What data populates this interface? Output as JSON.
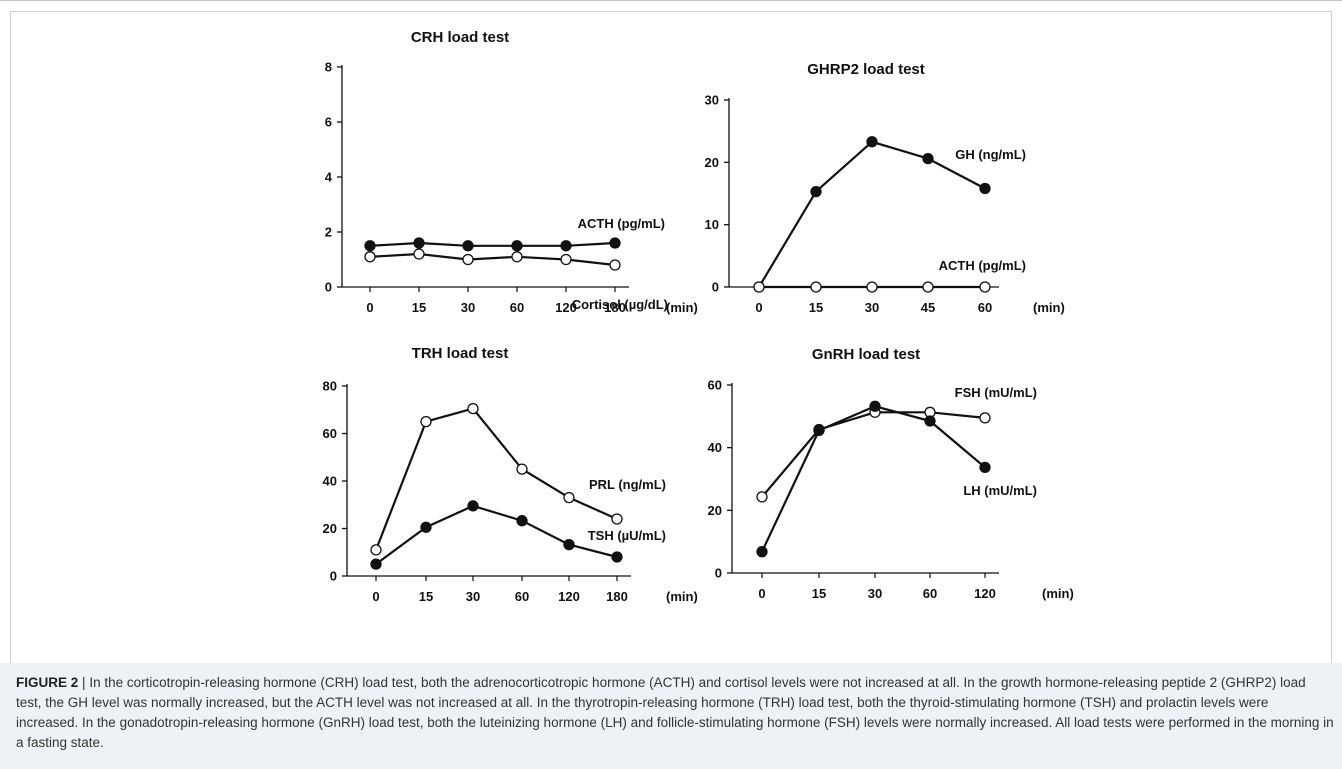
{
  "chart_data": [
    {
      "type": "line",
      "title": "CRH load test",
      "categories": [
        "0",
        "15",
        "30",
        "60",
        "120",
        "180"
      ],
      "x_unit": "(min)",
      "ylim": [
        0,
        8
      ],
      "yticks": [
        "0",
        "2",
        "4",
        "6",
        "8"
      ],
      "grid": false,
      "series": [
        {
          "name": "ACTH (pg/mL)",
          "marker": "filled",
          "values": [
            1.5,
            1.6,
            1.5,
            1.5,
            1.5,
            1.6
          ]
        },
        {
          "name": "Cortisol (µg/dL)",
          "marker": "open",
          "values": [
            1.1,
            1.2,
            1.0,
            1.1,
            1.0,
            0.8
          ]
        }
      ]
    },
    {
      "type": "line",
      "title": "GHRP2 load test",
      "categories": [
        "0",
        "15",
        "30",
        "45",
        "60"
      ],
      "x_unit": "(min)",
      "ylim": [
        0,
        30
      ],
      "yticks": [
        "0",
        "10",
        "20",
        "30"
      ],
      "grid": false,
      "series": [
        {
          "name": "GH (ng/mL)",
          "marker": "filled",
          "values": [
            0,
            15.3,
            23.3,
            20.6,
            15.8
          ]
        },
        {
          "name": "ACTH (pg/mL)",
          "marker": "open",
          "values": [
            0,
            0,
            0,
            0,
            0
          ]
        }
      ]
    },
    {
      "type": "line",
      "title": "TRH load test",
      "categories": [
        "0",
        "15",
        "30",
        "60",
        "120",
        "180"
      ],
      "x_unit": "(min)",
      "ylim": [
        0,
        80
      ],
      "yticks": [
        "0",
        "20",
        "40",
        "60",
        "80"
      ],
      "grid": false,
      "series": [
        {
          "name": "PRL (ng/mL)",
          "marker": "open",
          "values": [
            11,
            65,
            70.5,
            45,
            33,
            24
          ]
        },
        {
          "name": "TSH (µU/mL)",
          "marker": "filled",
          "values": [
            5,
            20.5,
            29.5,
            23.3,
            13.2,
            8
          ]
        }
      ]
    },
    {
      "type": "line",
      "title": "GnRH load test",
      "categories": [
        "0",
        "15",
        "30",
        "60",
        "120"
      ],
      "x_unit": "(min)",
      "ylim": [
        0,
        60
      ],
      "yticks": [
        "0",
        "20",
        "40",
        "60"
      ],
      "grid": false,
      "series": [
        {
          "name": "FSH (mU/mL)",
          "marker": "open",
          "values": [
            24.3,
            45.8,
            51.3,
            51.3,
            49.5
          ]
        },
        {
          "name": "LH (mU/mL)",
          "marker": "filled",
          "values": [
            6.8,
            45.5,
            53.2,
            48.5,
            33.7
          ]
        }
      ]
    }
  ],
  "caption": {
    "label": "FIGURE 2",
    "separator": "|",
    "text": "In the corticotropin-releasing hormone (CRH) load test, both the adrenocorticotropic hormone (ACTH) and cortisol levels were not increased at all. In the growth hormone-releasing peptide 2 (GHRP2) load test, the GH level was normally increased, but the ACTH level was not increased at all. In the thyrotropin-releasing hormone (TRH) load test, both the thyroid-stimulating hormone (TSH) and prolactin levels were increased. In the gonadotropin-releasing hormone (GnRH) load test, both the luteinizing hormone (LH) and follicle-stimulating hormone (FSH) levels were normally increased. All load tests were performed in the morning in a fasting state."
  }
}
